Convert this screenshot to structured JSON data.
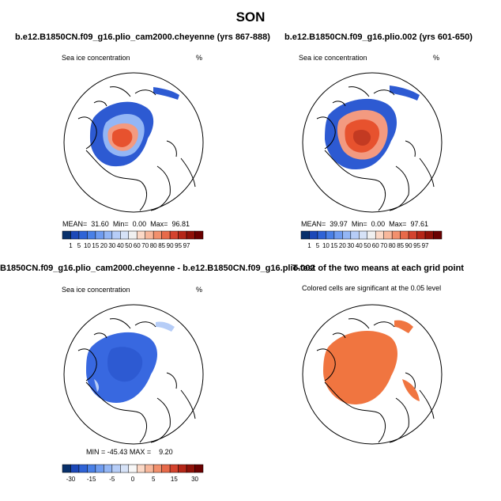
{
  "title": "SON",
  "panels": {
    "p1": {
      "title": "b.e12.B1850CN.f09_g16.plio_cam2000.cheyenne (yrs 867-888)",
      "variable": "Sea ice concentration",
      "units": "%",
      "mean_label": "MEAN=",
      "mean": "31.60",
      "min_label": "Min=",
      "min": "0.00",
      "max_label": "Max=",
      "max": "96.81"
    },
    "p2": {
      "title": "b.e12.B1850CN.f09_g16.plio.002 (yrs 601-650)",
      "variable": "Sea ice concentration",
      "units": "%",
      "mean_label": "MEAN=",
      "mean": "39.97",
      "min_label": "Min=",
      "min": "0.00",
      "max_label": "Max=",
      "max": "97.61"
    },
    "p3": {
      "title": "B1850CN.f09_g16.plio_cam2000.cheyenne - b.e12.B1850CN.f09_g16.plio.002",
      "variable": "Sea ice concentration",
      "units": "%",
      "min_label": "MIN =",
      "min": "-45.43",
      "max_label": "MAX =",
      "max": "9.20"
    },
    "p4": {
      "title": "T-test of the two means at each grid point",
      "subtitle": "Colored cells are significant at the 0.05 level"
    }
  },
  "colorbar_abs": {
    "colors": [
      "#08306b",
      "#1c48b8",
      "#2f63d6",
      "#4a80e6",
      "#6f9cf0",
      "#93b6f5",
      "#b6cdf7",
      "#d6e2f7",
      "#f0f0f0",
      "#fbd8c6",
      "#f8b79b",
      "#f2906d",
      "#e76a4a",
      "#d4432e",
      "#b52617",
      "#8f1108",
      "#6a0000"
    ],
    "labels": [
      "1",
      "5",
      "10",
      "15",
      "20",
      "30",
      "40",
      "50",
      "60",
      "70",
      "80",
      "85",
      "90",
      "95",
      "97"
    ]
  },
  "colorbar_diff": {
    "colors": [
      "#08306b",
      "#1c48b8",
      "#2f63d6",
      "#4a80e6",
      "#6f9cf0",
      "#93b6f5",
      "#b6cdf7",
      "#d6e2f7",
      "#f7f7f7",
      "#fbd8c6",
      "#f8b79b",
      "#f2906d",
      "#e76a4a",
      "#d4432e",
      "#b52617",
      "#8f1108",
      "#6a0000"
    ],
    "labels": [
      "-30",
      "-15",
      "-5",
      "0",
      "5",
      "15",
      "30"
    ]
  },
  "colors": {
    "land_outline": "#000000",
    "ice_high": "#e7522e",
    "ice_mid": "#f39a80",
    "ice_low": "#2d5ad2",
    "diff": "#3868e0",
    "ttest": "#f07540"
  }
}
